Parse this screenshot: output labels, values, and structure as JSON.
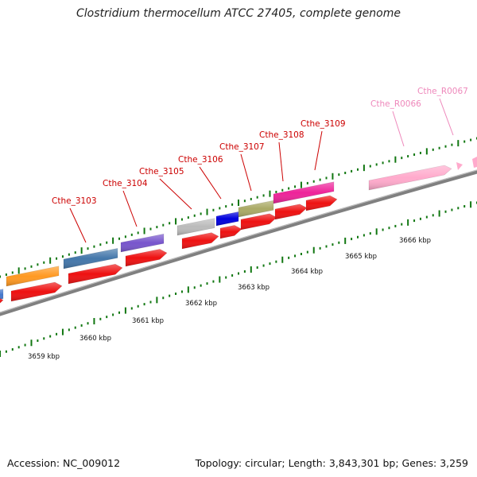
{
  "title": "Clostridium thermocellum ATCC 27405, complete genome",
  "accession": "Accession: NC_009012",
  "topology": "Topology: circular; Length: 3,843,301 bp; Genes: 3,259",
  "colors": {
    "backbone": "#808080",
    "cds_red": "#ee1111",
    "label_red": "#cc0000",
    "label_pink": "#ee88bb",
    "tick_green": "#117711"
  },
  "kbp_labels": [
    "3659 kbp",
    "3660 kbp",
    "3661 kbp",
    "3662 kbp",
    "3663 kbp",
    "3664 kbp",
    "3665 kbp",
    "3666 kbp"
  ],
  "gene_labels": [
    {
      "name": "Cthe_3103",
      "color": "#cc0000"
    },
    {
      "name": "Cthe_3104",
      "color": "#cc0000"
    },
    {
      "name": "Cthe_3105",
      "color": "#cc0000"
    },
    {
      "name": "Cthe_3106",
      "color": "#cc0000"
    },
    {
      "name": "Cthe_3107",
      "color": "#cc0000"
    },
    {
      "name": "Cthe_3108",
      "color": "#cc0000"
    },
    {
      "name": "Cthe_3109",
      "color": "#cc0000"
    },
    {
      "name": "Cthe_R0066",
      "color": "#ee88bb"
    },
    {
      "name": "Cthe_R0067",
      "color": "#ee88bb"
    }
  ],
  "feature_colors": [
    "#4477cc",
    "#ff9922",
    "#4477aa",
    "#7755cc",
    "#bbbbbb",
    "#0000dd",
    "#aaaa66",
    "#ee2299",
    "#ffaacc",
    "#ffaacc",
    "#ffaacc"
  ]
}
